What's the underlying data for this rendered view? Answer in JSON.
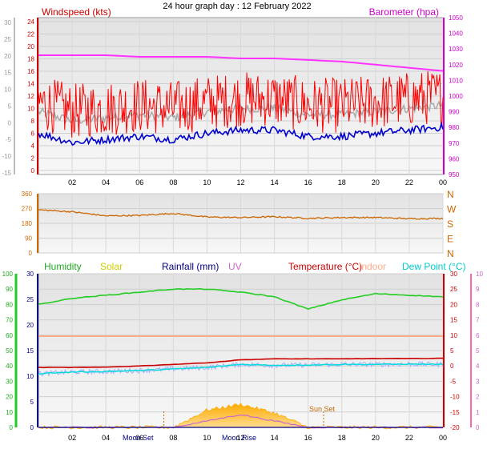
{
  "title": "24 hour graph day : 12 February 2022",
  "x_ticks": [
    "02",
    "04",
    "06",
    "08",
    "10",
    "12",
    "14",
    "16",
    "18",
    "20",
    "22",
    "00"
  ],
  "panels": {
    "wind": {
      "left_label": "Windspeed (kts)",
      "right_label": "Barometer (hpa)",
      "left_axis_outer": [
        30,
        25,
        20,
        15,
        10,
        5,
        0,
        -5,
        -10,
        -15
      ],
      "left_axis_inner": [
        24,
        22,
        20,
        18,
        16,
        14,
        12,
        10,
        8,
        6,
        4,
        2,
        0
      ],
      "right_axis": [
        1050,
        1040,
        1030,
        1020,
        1010,
        1000,
        990,
        980,
        970,
        960,
        950
      ],
      "barometer_color": "#ff33ff",
      "gust_color": "#ff0000",
      "avg_color": "#0000cc",
      "gray_color": "#aaaaaa"
    },
    "direction": {
      "left_axis": [
        360,
        270,
        180,
        90,
        0
      ],
      "compass": [
        "N",
        "W",
        "S",
        "E",
        "N"
      ],
      "color": "#cc6600"
    },
    "temp": {
      "legend": {
        "humidity": "Humidity",
        "solar": "Solar",
        "rainfall": "Rainfall (mm)",
        "uv": "UV",
        "temperature": "Temperature (°C)",
        "indoor": "Indoor",
        "dewpoint": "Dew Point (°C)"
      },
      "humidity_axis": [
        100,
        90,
        80,
        70,
        60,
        50,
        40,
        30,
        20,
        10,
        0
      ],
      "rain_axis": [
        30,
        25,
        20,
        15,
        10,
        5,
        0
      ],
      "temp_axis": [
        30,
        25,
        20,
        15,
        10,
        5,
        0,
        -5,
        -10,
        -15,
        -20
      ],
      "uv_axis": [
        10,
        9,
        8,
        7,
        6,
        5,
        4,
        3,
        2,
        1,
        0
      ],
      "annotations": {
        "moonset": "Moon Set",
        "moonrise": "Moon Rise",
        "sunset": "Sun Set"
      },
      "colors": {
        "humidity": "#22cc22",
        "solar": "#cccc00",
        "rainfall": "#000080",
        "uv": "#cc66cc",
        "temperature": "#cc0000",
        "indoor": "#ffaa88",
        "dewpoint": "#00dddd"
      }
    }
  },
  "chart_data": [
    {
      "type": "line",
      "title": "24 hour graph day : 12 February 2022",
      "x": [
        "00",
        "02",
        "04",
        "06",
        "08",
        "10",
        "12",
        "14",
        "16",
        "18",
        "20",
        "22",
        "00"
      ],
      "series": [
        {
          "name": "Barometer (hpa)",
          "values": [
            1026,
            1026,
            1026,
            1025,
            1025,
            1025,
            1024,
            1024,
            1023,
            1022,
            1020,
            1018,
            1016
          ]
        },
        {
          "name": "Windspeed (kts)",
          "values": [
            6,
            4.5,
            5,
            5.5,
            5,
            6,
            6.5,
            6.5,
            5.5,
            5.5,
            6,
            6.5,
            7
          ]
        }
      ],
      "ylim": [
        0,
        24
      ]
    },
    {
      "type": "line",
      "x": [
        "00",
        "02",
        "04",
        "06",
        "08",
        "10",
        "12",
        "14",
        "16",
        "18",
        "20",
        "22",
        "00"
      ],
      "series": [
        {
          "values": [
            262,
            250,
            225,
            228,
            240,
            218,
            215,
            220,
            210,
            215,
            215,
            208,
            210
          ]
        }
      ],
      "ylim": [
        0,
        360
      ]
    },
    {
      "type": "line",
      "x": [
        "00",
        "02",
        "04",
        "06",
        "08",
        "10",
        "12",
        "14",
        "16",
        "18",
        "20",
        "22",
        "00"
      ],
      "series": [
        {
          "name": "Humidity",
          "values": [
            80,
            84,
            86,
            88,
            90,
            90,
            88,
            85,
            77,
            83,
            87,
            86,
            85
          ]
        },
        {
          "name": "Temperature (°C)",
          "values": [
            -0.5,
            -0.5,
            -0.4,
            0,
            0.5,
            1,
            2,
            2.3,
            2.3,
            2.3,
            2.4,
            2.4,
            2.5
          ]
        },
        {
          "name": "Indoor",
          "values": [
            9.7,
            9.7,
            9.7,
            9.7,
            9.7,
            9.7,
            9.7,
            9.7,
            9.7,
            9.7,
            9.7,
            9.7,
            9.7
          ]
        },
        {
          "name": "Dew Point (°C)",
          "values": [
            -2.5,
            -2,
            -1.8,
            -1.5,
            -1,
            -0.5,
            0.5,
            0.2,
            0.3,
            0.5,
            0.5,
            0.6,
            0.5
          ]
        },
        {
          "name": "Solar",
          "values": [
            0,
            0,
            0,
            0,
            0,
            3,
            4,
            2.5,
            0,
            0,
            0,
            0,
            0
          ]
        },
        {
          "name": "UV",
          "values": [
            0,
            0,
            0,
            0,
            0,
            0.5,
            1,
            0.5,
            0,
            0,
            0,
            0,
            0
          ]
        },
        {
          "name": "Rainfall (mm)",
          "values": [
            0,
            0,
            0,
            0,
            0,
            0,
            0,
            0,
            0,
            0,
            0,
            0,
            0
          ]
        }
      ],
      "ylim": [
        -20,
        30
      ]
    }
  ]
}
